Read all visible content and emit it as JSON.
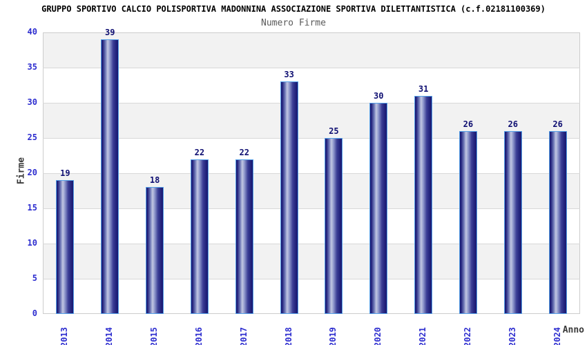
{
  "chart_data": {
    "type": "bar",
    "title": "GRUPPO SPORTIVO CALCIO POLISPORTIVA MADONNINA ASSOCIAZIONE SPORTIVA DILETTANTISTICA (c.f.02181100369)",
    "subtitle": "Numero Firme",
    "xlabel": "Anno",
    "ylabel": "Firme",
    "categories": [
      "2013",
      "2014",
      "2015",
      "2016",
      "2017",
      "2018",
      "2019",
      "2020",
      "2021",
      "2022",
      "2023",
      "2024"
    ],
    "values": [
      19,
      39,
      18,
      22,
      22,
      33,
      25,
      30,
      31,
      26,
      26,
      26
    ],
    "ylim": [
      0,
      40
    ],
    "ytick_step": 5,
    "ytick_labels": [
      "0",
      "5",
      "10",
      "15",
      "20",
      "25",
      "30",
      "35",
      "40"
    ],
    "grid": "horizontal-bands",
    "legend": "none",
    "colors": {
      "title": "#000000",
      "subtitle": "#5a5a5a",
      "axis_label": "#3a3a3a",
      "tick_label": "#2d2dcf",
      "value_label": "#0f0f72",
      "band_gray": "#f2f2f2",
      "band_white": "#ffffff",
      "gridline": "#d8d8d8",
      "plot_border": "#cccccc",
      "bar_border": "#55a0e8",
      "bar_dark": "#191970",
      "bar_mid": "#23237d",
      "bar_light": "#c2c7e2"
    }
  }
}
